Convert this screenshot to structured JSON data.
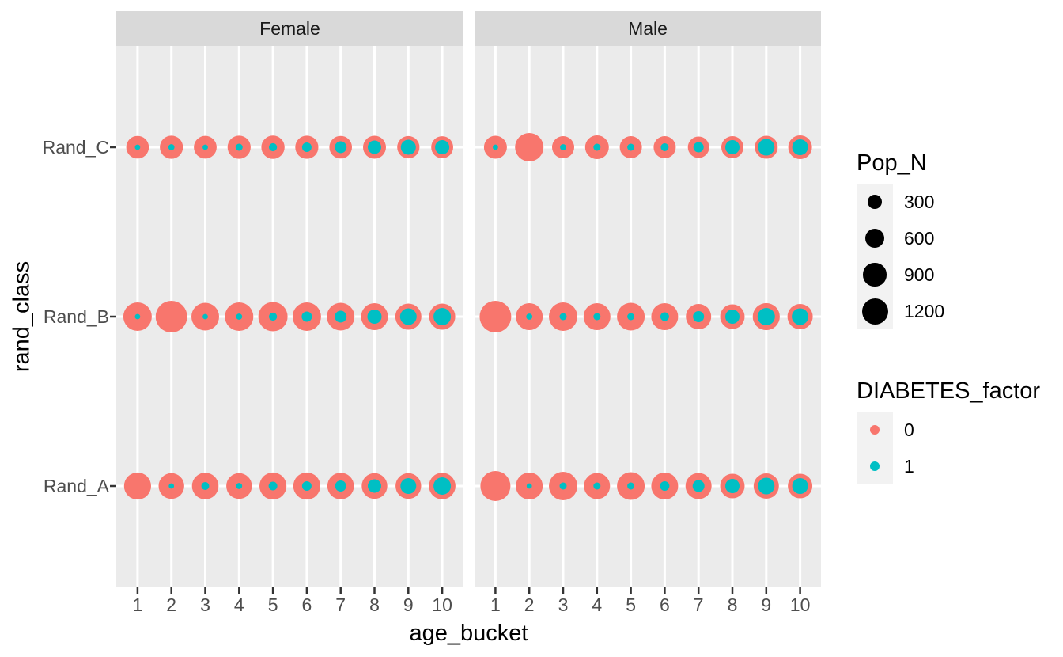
{
  "style": {
    "panel_bg": "#EBEBEB",
    "strip_bg": "#D9D9D9",
    "gridline": "#FFFFFF",
    "tick_mark": "#333333",
    "tick_text": "#4D4D4D",
    "title_text": "#000000",
    "legend_key_bg": "#F2F2F2",
    "legend_size_circle": "#000000"
  },
  "chart_data": {
    "type": "scatter",
    "subtype": "faceted-bubble",
    "title": "",
    "xlabel": "age_bucket",
    "ylabel": "rand_class",
    "facet_labels": [
      "Female",
      "Male"
    ],
    "x_ticks": [
      "1",
      "2",
      "3",
      "4",
      "5",
      "6",
      "7",
      "8",
      "9",
      "10"
    ],
    "axis_ranges": {
      "x": [
        1,
        10
      ]
    },
    "y_categories": [
      "Rand_A",
      "Rand_B",
      "Rand_C"
    ],
    "y_tick_labels_top_to_bottom": [
      "Rand_C",
      "Rand_B",
      "Rand_A"
    ],
    "grid": "white major gridlines on gray panel",
    "legend_position": "right",
    "size_legend": {
      "title": "Pop_N",
      "breaks": [
        "300",
        "600",
        "900",
        "1200"
      ],
      "break_values": [
        300,
        600,
        900,
        1200
      ]
    },
    "color_legend": {
      "title": "DIABETES_factor",
      "entries": [
        {
          "label": "0",
          "color": "#F8766D"
        },
        {
          "label": "1",
          "color": "#00BFC4"
        }
      ]
    },
    "series": [
      {
        "facet": "Female",
        "rand_class": "Rand_C",
        "pop_n_factor0": [
          870,
          900,
          880,
          900,
          920,
          900,
          870,
          890,
          840,
          810
        ],
        "pop_n_factor1": [
          15,
          25,
          15,
          40,
          60,
          100,
          180,
          250,
          330,
          290
        ]
      },
      {
        "facet": "Female",
        "rand_class": "Rand_B",
        "pop_n_factor0": [
          1450,
          1830,
          1360,
          1450,
          1540,
          1450,
          1360,
          1280,
          1200,
          1200
        ],
        "pop_n_factor1": [
          15,
          0,
          15,
          25,
          60,
          120,
          180,
          290,
          420,
          470
        ]
      },
      {
        "facet": "Female",
        "rand_class": "Rand_A",
        "pop_n_factor0": [
          1300,
          1150,
          1250,
          1150,
          1300,
          1300,
          1250,
          1150,
          1150,
          1250
        ],
        "pop_n_factor1": [
          0,
          15,
          55,
          25,
          75,
          100,
          150,
          250,
          370,
          470
        ]
      },
      {
        "facet": "Male",
        "rand_class": "Rand_C",
        "pop_n_factor0": [
          890,
          1450,
          820,
          960,
          820,
          820,
          760,
          820,
          890,
          960
        ],
        "pop_n_factor1": [
          15,
          0,
          25,
          40,
          40,
          55,
          120,
          290,
          420,
          370
        ]
      },
      {
        "facet": "Male",
        "rand_class": "Rand_B",
        "pop_n_factor0": [
          1830,
          1280,
          1450,
          1280,
          1360,
          1280,
          1120,
          1040,
          1300,
          1120
        ],
        "pop_n_factor1": [
          0,
          25,
          40,
          40,
          40,
          75,
          150,
          290,
          470,
          420
        ]
      },
      {
        "facet": "Male",
        "rand_class": "Rand_A",
        "pop_n_factor0": [
          1640,
          1280,
          1450,
          1200,
          1360,
          1280,
          1200,
          1040,
          1120,
          1040
        ],
        "pop_n_factor1": [
          0,
          15,
          40,
          40,
          40,
          100,
          180,
          290,
          420,
          370
        ]
      }
    ]
  }
}
